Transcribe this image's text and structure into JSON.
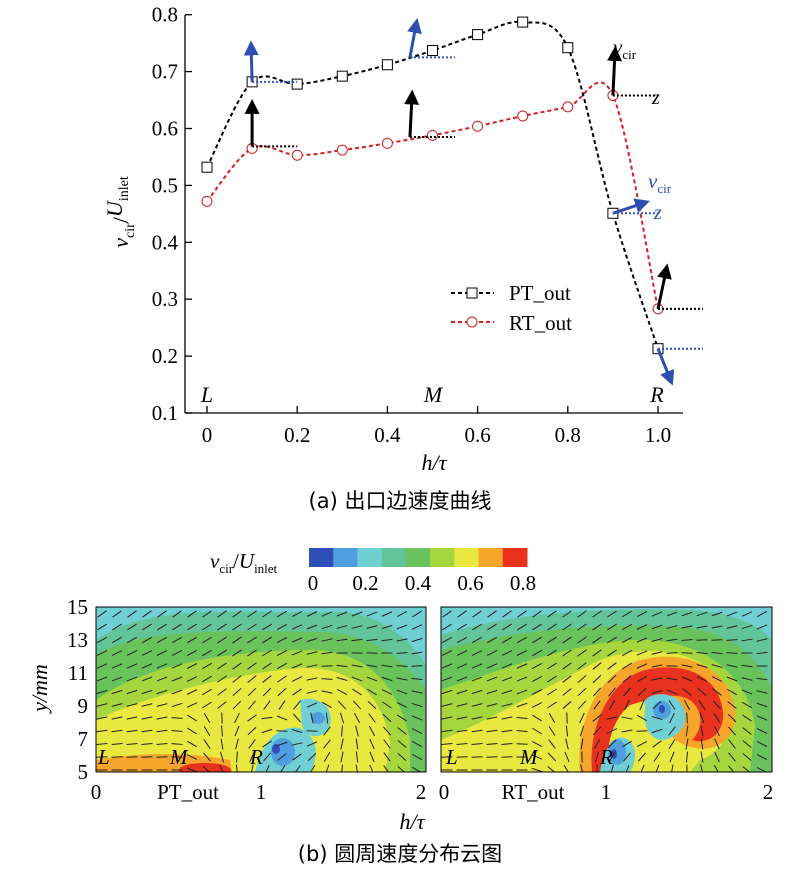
{
  "chart_data": [
    {
      "type": "line",
      "panel_label": "(a) 出口边速度曲线",
      "xlabel": "h/τ",
      "ylabel": "v_cir/U_inlet",
      "xlim": [
        -0.05,
        1.0
      ],
      "ylim": [
        0.1,
        0.8
      ],
      "x_ticks": [
        "0",
        "0.2",
        "0.4",
        "0.6",
        "0.8",
        "1.0"
      ],
      "y_ticks": [
        "0.1",
        "0.2",
        "0.3",
        "0.4",
        "0.5",
        "0.6",
        "0.7",
        "0.8"
      ],
      "position_labels": [
        "L",
        "M",
        "R"
      ],
      "vector_labels": {
        "v": "v",
        "v_sub": "cir",
        "z": "z"
      },
      "legend": {
        "placement": "center-right"
      },
      "series": [
        {
          "name": "PT_out",
          "color": "#000000",
          "marker": "square",
          "x": [
            0,
            0.1,
            0.2,
            0.3,
            0.4,
            0.5,
            0.6,
            0.7,
            0.8,
            0.9,
            1.0
          ],
          "y": [
            0.532,
            0.682,
            0.678,
            0.692,
            0.712,
            0.737,
            0.765,
            0.787,
            0.742,
            0.451,
            0.213
          ]
        },
        {
          "name": "RT_out",
          "color": "#d42020",
          "marker": "circle",
          "x": [
            0,
            0.1,
            0.2,
            0.3,
            0.4,
            0.5,
            0.6,
            0.7,
            0.8,
            0.9,
            1.0
          ],
          "y": [
            0.472,
            0.565,
            0.553,
            0.562,
            0.574,
            0.588,
            0.604,
            0.622,
            0.638,
            0.658,
            0.283
          ]
        }
      ]
    },
    {
      "type": "heatmap",
      "panel_label": "(b) 圆周速度分布云图",
      "colorbar": {
        "label_main": "v",
        "label_sub": "cir",
        "label_den": "U",
        "label_den_sub": "inlet",
        "ticks": [
          "0",
          "0.2",
          "0.4",
          "0.6",
          "0.8"
        ],
        "colors": [
          "#2e4fb8",
          "#4f9ee0",
          "#6fcfd3",
          "#63c49a",
          "#69c25c",
          "#a6d63e",
          "#e8e840",
          "#f5a52a",
          "#e8321e"
        ]
      },
      "ylabel": "y/mm",
      "y_ticks": [
        "5",
        "7",
        "9",
        "11",
        "13",
        "15"
      ],
      "xlabel": "h/τ",
      "panels": [
        {
          "name": "PT_out",
          "x_ticks": [
            "0",
            "1",
            "2"
          ],
          "labels": [
            "L",
            "M",
            "R"
          ]
        },
        {
          "name": "RT_out",
          "x_ticks": [
            "0",
            "1",
            "2"
          ],
          "labels": [
            "L",
            "M",
            "R"
          ]
        }
      ]
    }
  ]
}
